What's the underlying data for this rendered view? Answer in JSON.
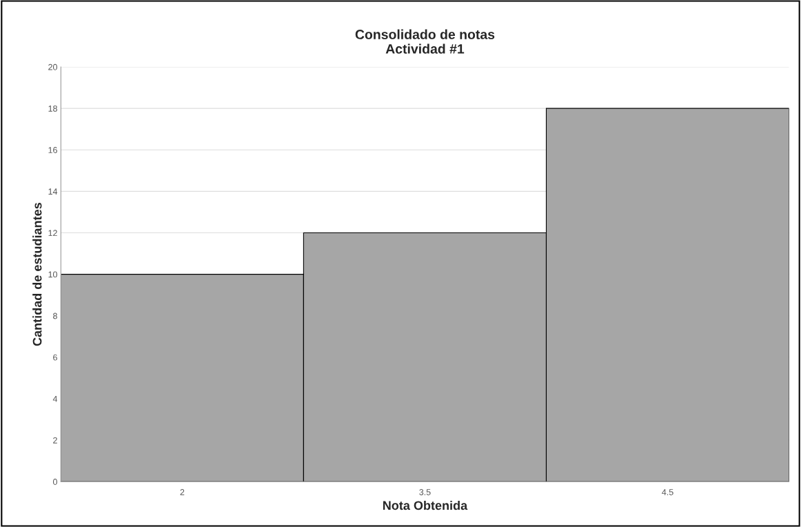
{
  "chart_data": {
    "type": "bar",
    "title": "Consolidado de notas\nActividad #1",
    "xlabel": "Nota Obtenida",
    "ylabel": "Cantidad de estudiantes",
    "categories": [
      "2",
      "3.5",
      "4.5"
    ],
    "values": [
      10,
      12,
      18
    ],
    "color": "#a6a6a6",
    "ylim": [
      0,
      20
    ],
    "yticks": [
      0,
      2,
      4,
      6,
      8,
      10,
      12,
      14,
      16,
      18,
      20
    ],
    "grid": "y",
    "legend": false
  }
}
